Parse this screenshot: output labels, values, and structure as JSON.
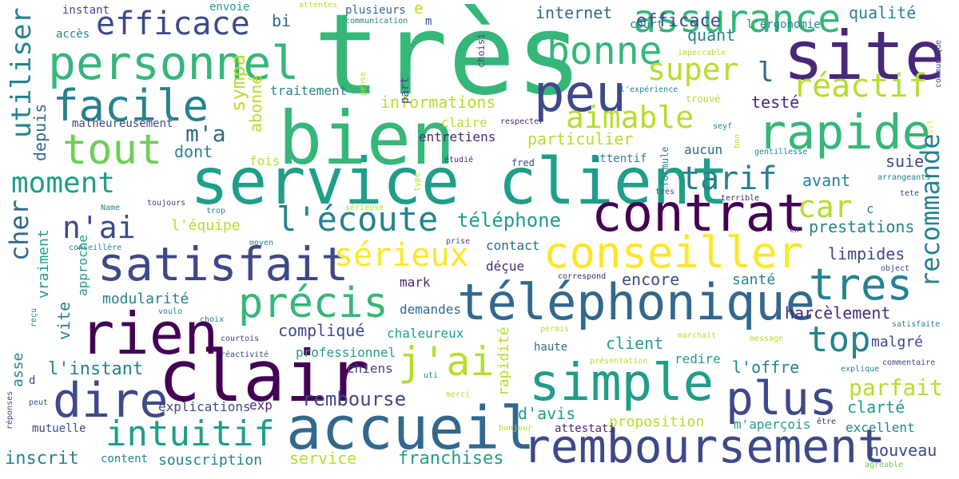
{
  "palette": {
    "dp": "#440154",
    "ind": "#482878",
    "bl": "#3e4989",
    "sb": "#31688e",
    "tl": "#26828e",
    "tg": "#1f9e89",
    "gr": "#35b779",
    "lg": "#6ece58",
    "yg": "#b5de2b",
    "ye": "#fde725"
  },
  "words": [
    {
      "text": "très",
      "c": "gr"
    },
    {
      "text": "bien",
      "c": "gr"
    },
    {
      "text": "service client",
      "c": "tg"
    },
    {
      "text": "clair",
      "c": "dp"
    },
    {
      "text": "site",
      "c": "ind"
    },
    {
      "text": "accueil",
      "c": "sb"
    },
    {
      "text": "simple",
      "c": "tg"
    },
    {
      "text": "remboursement",
      "c": "bl"
    },
    {
      "text": "téléphonique",
      "c": "sb"
    },
    {
      "text": "contrat",
      "c": "dp"
    },
    {
      "text": "personnel",
      "c": "gr"
    },
    {
      "text": "rapide",
      "c": "gr"
    },
    {
      "text": "rien",
      "c": "dp"
    },
    {
      "text": "satisfait",
      "c": "bl"
    },
    {
      "text": "dire",
      "c": "bl"
    },
    {
      "text": "conseiller",
      "c": "ye"
    },
    {
      "text": "peu",
      "c": "bl"
    },
    {
      "text": "plus",
      "c": "bl"
    },
    {
      "text": "tres",
      "c": "tl"
    },
    {
      "text": "précis",
      "c": "gr"
    },
    {
      "text": "facile",
      "c": "tl"
    },
    {
      "text": "bonne",
      "c": "gr"
    },
    {
      "text": "assurance",
      "c": "gr"
    },
    {
      "text": "intuitif",
      "c": "tg"
    },
    {
      "text": "j'ai",
      "c": "yg"
    },
    {
      "text": "tout",
      "c": "lg"
    },
    {
      "text": "l'écoute",
      "c": "tl"
    },
    {
      "text": "top",
      "c": "tl"
    },
    {
      "text": "recommande",
      "c": "tl"
    },
    {
      "text": "utiliser",
      "c": "tl"
    },
    {
      "text": "efficace",
      "c": "bl"
    },
    {
      "text": "sérieux",
      "c": "ye"
    },
    {
      "text": "réactif",
      "c": "yg"
    },
    {
      "text": "super",
      "c": "yg"
    },
    {
      "text": "tarif",
      "c": "tl"
    },
    {
      "text": "aimable",
      "c": "yg"
    },
    {
      "text": "moment",
      "c": "tg"
    },
    {
      "text": "n'ai",
      "c": "bl"
    },
    {
      "text": "cher",
      "c": "sb"
    },
    {
      "text": "car",
      "c": "yg"
    },
    {
      "text": "parfait",
      "c": "yg"
    },
    {
      "text": "téléphone",
      "c": "tg"
    },
    {
      "text": "rembourse",
      "c": "bl"
    },
    {
      "text": "franchises",
      "c": "tg"
    },
    {
      "text": "internet",
      "c": "sb"
    },
    {
      "text": "qualité",
      "c": "tl"
    },
    {
      "text": "quant",
      "c": "tl"
    },
    {
      "text": "informations",
      "c": "yg"
    },
    {
      "text": "particulier",
      "c": "yg"
    },
    {
      "text": "l",
      "c": "sb"
    },
    {
      "text": "m'a",
      "c": "sb"
    },
    {
      "text": "testé",
      "c": "ind"
    },
    {
      "text": "sympa",
      "c": "yg"
    },
    {
      "text": "depuis",
      "c": "sb"
    },
    {
      "text": "dont",
      "c": "tl"
    },
    {
      "text": "abonné",
      "c": "yg"
    },
    {
      "text": "bi",
      "c": "sb"
    },
    {
      "text": "e",
      "c": "yg"
    },
    {
      "text": "suie",
      "c": "bl"
    },
    {
      "text": "avant",
      "c": "tl"
    },
    {
      "text": "prestations",
      "c": "tl"
    },
    {
      "text": "limpides",
      "c": "bl"
    },
    {
      "text": "encore",
      "c": "bl"
    },
    {
      "text": "santé",
      "c": "tl"
    },
    {
      "text": "nouveau",
      "c": "bl"
    },
    {
      "text": "clarté",
      "c": "tg"
    },
    {
      "text": "d'avis",
      "c": "tg"
    },
    {
      "text": "proposition",
      "c": "yg"
    },
    {
      "text": "l'offre",
      "c": "tl"
    },
    {
      "text": "harcèlement",
      "c": "ind"
    },
    {
      "text": "malgré",
      "c": "bl"
    },
    {
      "text": "client",
      "c": "tg"
    },
    {
      "text": "haute",
      "c": "sb"
    },
    {
      "text": "l'instant",
      "c": "tl"
    },
    {
      "text": "vraiment",
      "c": "tg"
    },
    {
      "text": "vite",
      "c": "tl"
    },
    {
      "text": "asse",
      "c": "tl"
    },
    {
      "text": "inscrit",
      "c": "tl"
    },
    {
      "text": "souscription",
      "c": "tl"
    },
    {
      "text": "service",
      "c": "yg"
    },
    {
      "text": "compliqué",
      "c": "bl"
    },
    {
      "text": "modularité",
      "c": "tl"
    },
    {
      "text": "chaleureux",
      "c": "tg"
    },
    {
      "text": "professionnel",
      "c": "tg"
    },
    {
      "text": "explications",
      "c": "bl"
    },
    {
      "text": "mutuelle",
      "c": "bl"
    },
    {
      "text": "approche",
      "c": "tg"
    },
    {
      "text": "l'équipe",
      "c": "yg"
    },
    {
      "text": "demandes",
      "c": "sb"
    },
    {
      "text": "déçue",
      "c": "ind"
    },
    {
      "text": "mark",
      "c": "ind"
    },
    {
      "text": "contact",
      "c": "sb"
    },
    {
      "text": "rapidité",
      "c": "yg"
    },
    {
      "text": "chiens",
      "c": "bl"
    },
    {
      "text": "redire",
      "c": "tg"
    },
    {
      "text": "excellent",
      "c": "tl"
    },
    {
      "text": "m'aperçois",
      "c": "tg"
    },
    {
      "text": "attestati",
      "c": "ind"
    },
    {
      "text": "exp",
      "c": "ind"
    },
    {
      "text": "content",
      "c": "tl"
    },
    {
      "text": "plusieurs",
      "c": "sb"
    },
    {
      "text": "efficace",
      "c": "bl"
    },
    {
      "text": "entretiens",
      "c": "ind"
    },
    {
      "text": "claire",
      "c": "yg"
    },
    {
      "text": "traitement",
      "c": "tl"
    },
    {
      "text": "fois",
      "c": "yg"
    },
    {
      "text": "aucun",
      "c": "sb"
    },
    {
      "text": "attentif",
      "c": "tl"
    },
    {
      "text": "c",
      "c": "tl"
    },
    {
      "text": "d",
      "c": "bl"
    },
    {
      "text": "malheureusement",
      "c": "bl"
    },
    {
      "text": "accès",
      "c": "tl"
    },
    {
      "text": "instant",
      "c": "bl"
    },
    {
      "text": "envoie",
      "c": "tg"
    },
    {
      "text": "attentes",
      "c": "yg"
    },
    {
      "text": "communication",
      "c": "tl"
    },
    {
      "text": "m",
      "c": "bl"
    },
    {
      "text": "court",
      "c": "tl"
    },
    {
      "text": "l'ergonomie",
      "c": "tl"
    },
    {
      "text": "choisi",
      "c": "bl"
    },
    {
      "text": "impeccable",
      "c": "yg"
    },
    {
      "text": "communique",
      "c": "bl"
    },
    {
      "text": "l'expérience",
      "c": "tl"
    },
    {
      "text": "trouvé",
      "c": "yg"
    },
    {
      "text": "respecter",
      "c": "ind"
    },
    {
      "text": "pense",
      "c": "yg"
    },
    {
      "text": "part",
      "c": "bl"
    },
    {
      "text": "étudié",
      "c": "ind"
    },
    {
      "text": "fred",
      "c": "bl"
    },
    {
      "text": "seyf",
      "c": "tl"
    },
    {
      "text": "bon",
      "c": "yg"
    },
    {
      "text": "formule",
      "c": "tl"
    },
    {
      "text": "gentillesse",
      "c": "tl"
    },
    {
      "text": "sit",
      "c": "ye"
    },
    {
      "text": "arrangeants",
      "c": "tl"
    },
    {
      "text": "tete",
      "c": "bl"
    },
    {
      "text": "très",
      "c": "bl"
    },
    {
      "text": "terrible",
      "c": "ind"
    },
    {
      "text": "type",
      "c": "yg"
    },
    {
      "text": "Name",
      "c": "tl"
    },
    {
      "text": "toujours",
      "c": "bl"
    },
    {
      "text": "trop",
      "c": "tl"
    },
    {
      "text": "sérieuse",
      "c": "yg"
    },
    {
      "text": "moyen",
      "c": "tl"
    },
    {
      "text": "prise",
      "c": "bl"
    },
    {
      "text": "conseillère",
      "c": "tl"
    },
    {
      "text": "ch",
      "c": "bl"
    },
    {
      "text": "object",
      "c": "bl"
    },
    {
      "text": "correspond",
      "c": "ind"
    },
    {
      "text": "voulo",
      "c": "tl"
    },
    {
      "text": "choix",
      "c": "tl"
    },
    {
      "text": "reçu",
      "c": "tl"
    },
    {
      "text": "courtois",
      "c": "bl"
    },
    {
      "text": "réactivité",
      "c": "bl"
    },
    {
      "text": "permis",
      "c": "yg"
    },
    {
      "text": "marchait",
      "c": "yg"
    },
    {
      "text": "message",
      "c": "yg"
    },
    {
      "text": "satisfaite",
      "c": "tl"
    },
    {
      "text": "présentation",
      "c": "yg"
    },
    {
      "text": "commentaire",
      "c": "bl"
    },
    {
      "text": "explique",
      "c": "tl"
    },
    {
      "text": "uti",
      "c": "tl"
    },
    {
      "text": "merci",
      "c": "yg"
    },
    {
      "text": "bonjour",
      "c": "yg"
    },
    {
      "text": "peut",
      "c": "bl"
    },
    {
      "text": "réponses",
      "c": "bl"
    },
    {
      "text": "être",
      "c": "ind"
    },
    {
      "text": "agréable",
      "c": "lg"
    }
  ]
}
